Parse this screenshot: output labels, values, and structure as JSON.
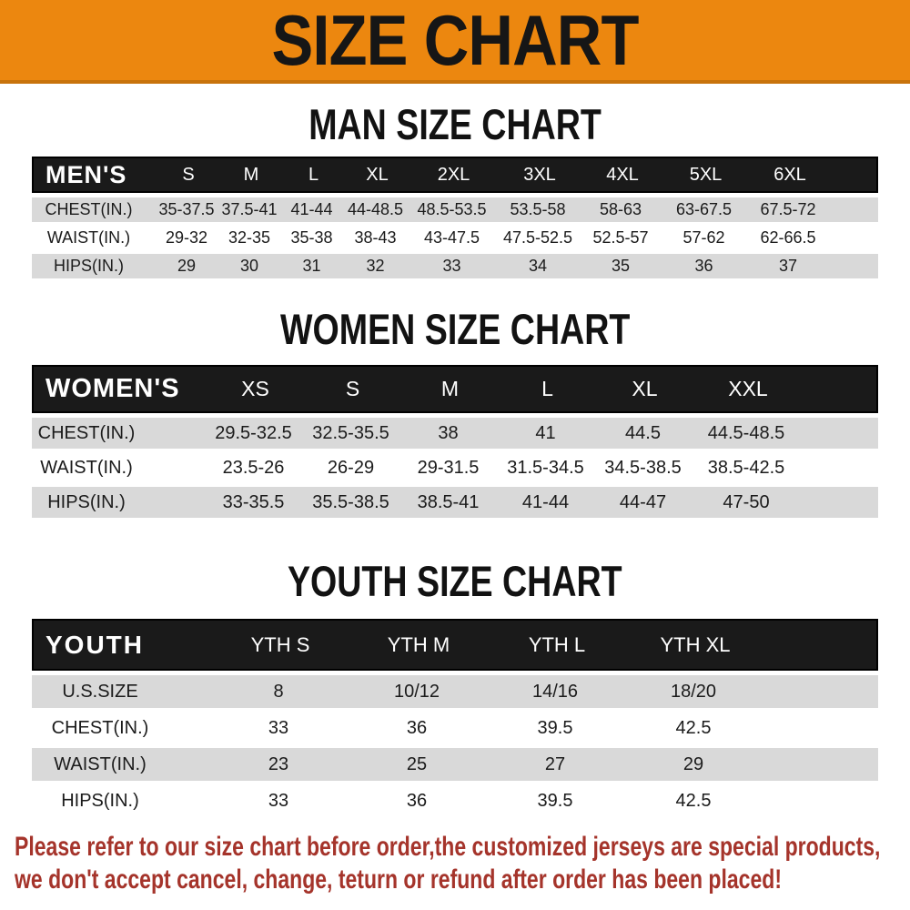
{
  "banner": {
    "title": "SIZE CHART"
  },
  "chart_data": [
    {
      "type": "table",
      "title": "MAN SIZE CHART",
      "corner_label": "MEN'S",
      "columns": [
        "S",
        "M",
        "L",
        "XL",
        "2XL",
        "3XL",
        "4XL",
        "5XL",
        "6XL"
      ],
      "rows": [
        {
          "label": "CHEST(IN.)",
          "values": [
            "35-37.5",
            "37.5-41",
            "41-44",
            "44-48.5",
            "48.5-53.5",
            "53.5-58",
            "58-63",
            "63-67.5",
            "67.5-72"
          ]
        },
        {
          "label": "WAIST(IN.)",
          "values": [
            "29-32",
            "32-35",
            "35-38",
            "38-43",
            "43-47.5",
            "47.5-52.5",
            "52.5-57",
            "57-62",
            "62-66.5"
          ]
        },
        {
          "label": "HIPS(IN.)",
          "values": [
            "29",
            "30",
            "31",
            "32",
            "33",
            "34",
            "35",
            "36",
            "37"
          ]
        }
      ]
    },
    {
      "type": "table",
      "title": "WOMEN SIZE CHART",
      "corner_label": "WOMEN'S",
      "columns": [
        "XS",
        "S",
        "M",
        "L",
        "XL",
        "XXL"
      ],
      "rows": [
        {
          "label": "CHEST(IN.)",
          "values": [
            "29.5-32.5",
            "32.5-35.5",
            "38",
            "41",
            "44.5",
            "44.5-48.5"
          ]
        },
        {
          "label": "WAIST(IN.)",
          "values": [
            "23.5-26",
            "26-29",
            "29-31.5",
            "31.5-34.5",
            "34.5-38.5",
            "38.5-42.5"
          ]
        },
        {
          "label": "HIPS(IN.)",
          "values": [
            "33-35.5",
            "35.5-38.5",
            "38.5-41",
            "41-44",
            "44-47",
            "47-50"
          ]
        }
      ]
    },
    {
      "type": "table",
      "title": "YOUTH SIZE CHART",
      "corner_label": "YOUTH",
      "columns": [
        "YTH S",
        "YTH M",
        "YTH L",
        "YTH XL"
      ],
      "rows": [
        {
          "label": "U.S.SIZE",
          "values": [
            "8",
            "10/12",
            "14/16",
            "18/20"
          ]
        },
        {
          "label": "CHEST(IN.)",
          "values": [
            "33",
            "36",
            "39.5",
            "42.5"
          ]
        },
        {
          "label": "WAIST(IN.)",
          "values": [
            "23",
            "25",
            "27",
            "29"
          ]
        },
        {
          "label": "HIPS(IN.)",
          "values": [
            "33",
            "36",
            "39.5",
            "42.5"
          ]
        }
      ]
    }
  ],
  "disclaimer": {
    "line1": "Please refer to our size chart before order,the customized jerseys are special products,",
    "line2": "we don't accept cancel, change, teturn or refund after order has been placed!"
  },
  "colors": {
    "banner_orange": "#EC870F",
    "banner_edge": "#C8730C",
    "bar_black": "#1A1A1A",
    "row_gray": "#D9D9D9",
    "disclaimer_red": "#A5342B"
  }
}
